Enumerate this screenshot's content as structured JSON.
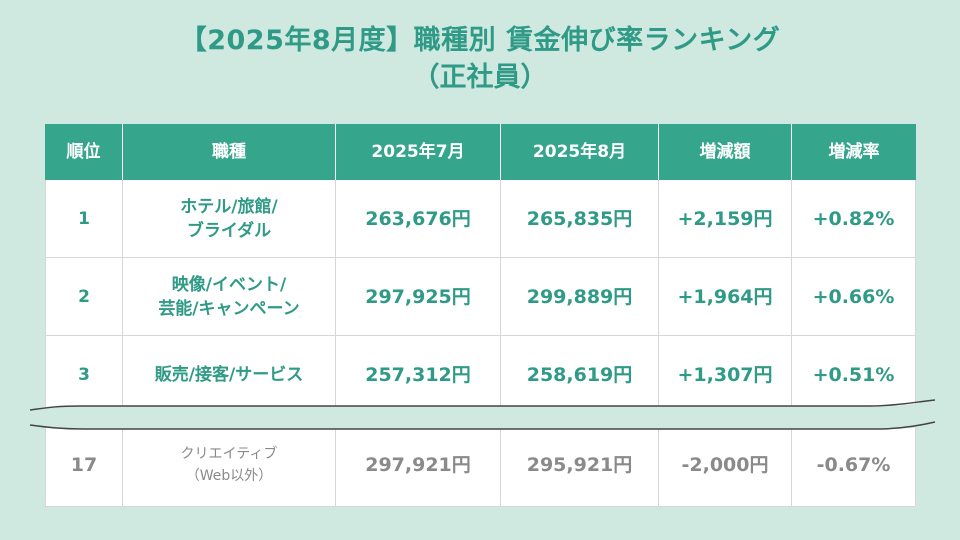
{
  "title": {
    "line1": "【2025年8月度】職種別 賃金伸び率ランキング",
    "line2": "（正社員）"
  },
  "table": {
    "headers": [
      "順位",
      "職種",
      "2025年7月",
      "2025年8月",
      "増減額",
      "増減率"
    ],
    "rows": [
      {
        "rank": "1",
        "job_l1": "ホテル/旅館/",
        "job_l2": "ブライダル",
        "jul": "263,676円",
        "aug": "265,835円",
        "diff": "+2,159円",
        "rate": "+0.82%"
      },
      {
        "rank": "2",
        "job_l1": "映像/イベント/",
        "job_l2": "芸能/キャンペーン",
        "jul": "297,925円",
        "aug": "299,889円",
        "diff": "+1,964円",
        "rate": "+0.66%"
      },
      {
        "rank": "3",
        "job_l1": "販売/接客/サービス",
        "job_l2": "",
        "jul": "257,312円",
        "aug": "258,619円",
        "diff": "+1,307円",
        "rate": "+0.51%"
      }
    ],
    "last_row": {
      "rank": "17",
      "job_l1": "クリエイティブ",
      "job_l2": "（Web以外）",
      "jul": "297,921円",
      "aug": "295,921円",
      "diff": "-2,000円",
      "rate": "-0.67%"
    }
  },
  "colors": {
    "accent": "#2f9a86",
    "header_bg": "#35a58c",
    "background": "#cfe9e1",
    "muted": "#8a8a8a"
  }
}
